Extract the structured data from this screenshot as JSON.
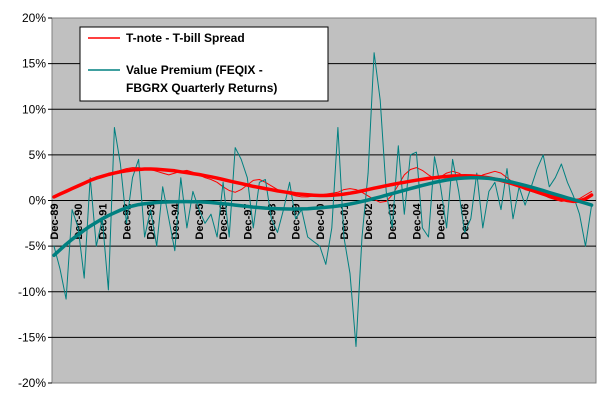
{
  "chart_data": {
    "type": "line",
    "title": "",
    "xlabel": "",
    "ylabel": "",
    "ylim": [
      -20,
      20
    ],
    "y_ticks": [
      "20%",
      "15%",
      "10%",
      "5%",
      "0%",
      "-5%",
      "-10%",
      "-15%",
      "-20%"
    ],
    "x_ticks": [
      "Dec-89",
      "Dec-90",
      "Dec-91",
      "Dec-92",
      "Dec-93",
      "Dec-94",
      "Dec-95",
      "Dec-96",
      "Dec-97",
      "Dec-98",
      "Dec-99",
      "Dec-00",
      "Dec-01",
      "Dec-02",
      "Dec-03",
      "Dec-04",
      "Dec-05",
      "Dec-06"
    ],
    "x_start": "Dec-89",
    "x_step": "quarter",
    "grid": true,
    "legend_position": "top-left",
    "plot_background": "#c0c0c0",
    "series": [
      {
        "name": "T-note - T-bill Spread",
        "color": "#ff0000",
        "values": [
          0.5,
          0.7,
          1.0,
          1.3,
          1.6,
          2.0,
          2.3,
          2.5,
          2.7,
          2.9,
          3.1,
          3.3,
          3.5,
          3.6,
          3.6,
          3.5,
          3.4,
          3.2,
          3.0,
          2.8,
          3.0,
          3.2,
          3.3,
          3.1,
          2.8,
          2.5,
          2.3,
          2.0,
          1.5,
          1.1,
          0.9,
          1.2,
          1.7,
          2.2,
          2.3,
          2.0,
          1.6,
          1.2,
          0.9,
          0.7,
          0.5,
          0.4,
          0.4,
          0.5,
          0.6,
          0.7,
          0.8,
          0.9,
          1.2,
          1.3,
          1.2,
          0.9,
          0.5,
          0.1,
          -0.2,
          -0.1,
          0.6,
          1.7,
          2.8,
          3.4,
          3.6,
          3.3,
          2.8,
          2.4,
          2.6,
          3.0,
          3.2,
          3.0,
          2.6,
          2.4,
          2.5,
          2.8,
          3.0,
          3.2,
          3.0,
          2.5,
          2.0,
          1.5,
          1.2,
          1.0,
          0.8,
          0.6,
          0.3,
          0.1,
          -0.1,
          0.0,
          0.1,
          0.2,
          0.6,
          1.0
        ]
      },
      {
        "name": "Value Premium (FEQIX - FBGRX Quarterly Returns)",
        "color": "#008080",
        "values": [
          -5.0,
          -7.5,
          -10.8,
          -1.0,
          -3.0,
          -8.5,
          2.5,
          -5.0,
          -2.0,
          -9.8,
          8.0,
          4.0,
          -2.5,
          2.5,
          4.5,
          -4.0,
          -1.0,
          -5.0,
          1.5,
          -2.0,
          -5.5,
          2.5,
          -3.0,
          1.0,
          -1.0,
          -2.5,
          -1.5,
          -4.0,
          2.0,
          -4.0,
          5.8,
          4.5,
          2.5,
          -3.0,
          2.0,
          2.3,
          -2.0,
          -3.5,
          -1.0,
          2.0,
          -2.0,
          -1.0,
          -4.0,
          -4.5,
          -5.0,
          -7.0,
          -3.0,
          8.0,
          -4.0,
          -8.0,
          -16.0,
          -4.0,
          3.0,
          16.2,
          11.0,
          1.0,
          -3.0,
          6.0,
          -1.5,
          5.0,
          5.3,
          -3.0,
          -4.0,
          4.8,
          1.5,
          -3.0,
          4.5,
          1.0,
          -3.5,
          -2.0,
          3.0,
          -3.0,
          1.0,
          2.0,
          -1.0,
          3.5,
          -2.0,
          1.5,
          -0.5,
          1.5,
          3.5,
          5.0,
          1.5,
          2.5,
          4.0,
          2.0,
          0.5,
          -1.5,
          -5.0,
          -0.5
        ]
      },
      {
        "name": "",
        "color": "#ff0000",
        "trend": true,
        "values": [
          0.4,
          0.7,
          1.0,
          1.3,
          1.6,
          1.9,
          2.2,
          2.45,
          2.65,
          2.85,
          3.0,
          3.15,
          3.25,
          3.35,
          3.4,
          3.45,
          3.45,
          3.42,
          3.38,
          3.32,
          3.25,
          3.15,
          3.05,
          2.95,
          2.85,
          2.72,
          2.6,
          2.45,
          2.3,
          2.15,
          2.0,
          1.85,
          1.7,
          1.55,
          1.42,
          1.3,
          1.18,
          1.05,
          0.95,
          0.85,
          0.75,
          0.68,
          0.62,
          0.58,
          0.55,
          0.55,
          0.58,
          0.62,
          0.7,
          0.8,
          0.92,
          1.05,
          1.2,
          1.35,
          1.48,
          1.62,
          1.75,
          1.88,
          2.0,
          2.12,
          2.22,
          2.32,
          2.42,
          2.5,
          2.58,
          2.63,
          2.68,
          2.7,
          2.72,
          2.7,
          2.65,
          2.58,
          2.48,
          2.35,
          2.2,
          2.02,
          1.82,
          1.6,
          1.38,
          1.15,
          0.92,
          0.7,
          0.5,
          0.32,
          0.15,
          0.0,
          -0.1,
          -0.05,
          0.2,
          0.6
        ]
      },
      {
        "name": "",
        "color": "#008080",
        "trend": true,
        "values": [
          -6.0,
          -5.4,
          -4.8,
          -4.25,
          -3.75,
          -3.25,
          -2.8,
          -2.4,
          -2.0,
          -1.65,
          -1.35,
          -1.05,
          -0.8,
          -0.6,
          -0.45,
          -0.35,
          -0.28,
          -0.22,
          -0.18,
          -0.15,
          -0.13,
          -0.12,
          -0.12,
          -0.13,
          -0.15,
          -0.18,
          -0.22,
          -0.28,
          -0.35,
          -0.42,
          -0.5,
          -0.58,
          -0.65,
          -0.72,
          -0.78,
          -0.83,
          -0.87,
          -0.9,
          -0.92,
          -0.93,
          -0.93,
          -0.92,
          -0.9,
          -0.86,
          -0.81,
          -0.75,
          -0.68,
          -0.6,
          -0.5,
          -0.38,
          -0.25,
          -0.1,
          0.05,
          0.22,
          0.4,
          0.58,
          0.76,
          0.94,
          1.12,
          1.3,
          1.48,
          1.65,
          1.82,
          1.98,
          2.12,
          2.25,
          2.35,
          2.42,
          2.47,
          2.5,
          2.5,
          2.47,
          2.42,
          2.35,
          2.25,
          2.12,
          1.98,
          1.82,
          1.65,
          1.47,
          1.28,
          1.08,
          0.88,
          0.68,
          0.48,
          0.28,
          0.1,
          -0.1,
          -0.3,
          -0.5
        ]
      }
    ]
  }
}
